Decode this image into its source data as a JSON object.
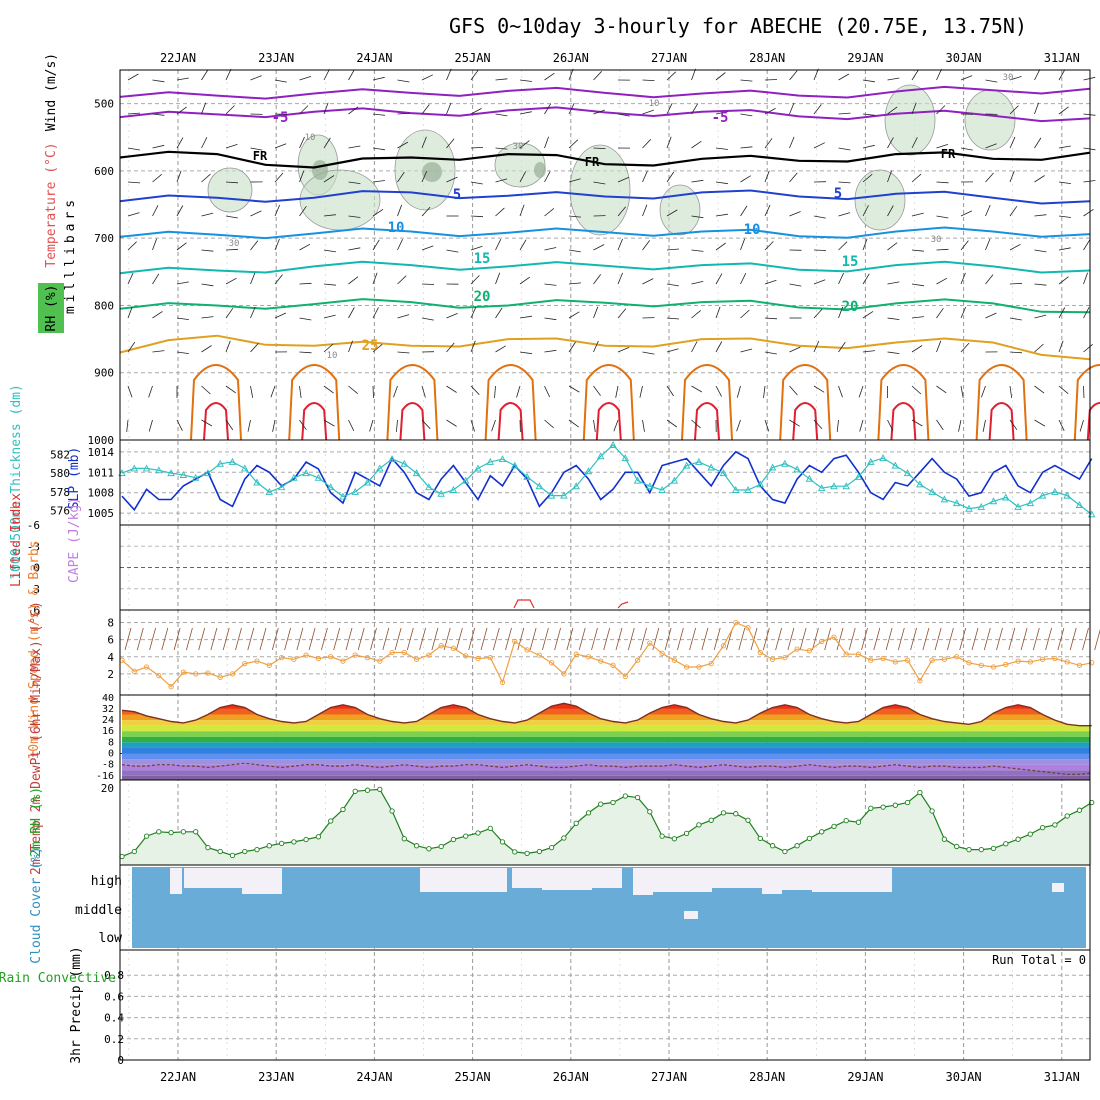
{
  "title": "GFS 0~10day 3-hourly for ABECHE (20.75E, 13.75N)",
  "days": [
    "22JAN",
    "23JAN",
    "24JAN",
    "25JAN",
    "26JAN",
    "27JAN",
    "28JAN",
    "29JAN",
    "30JAN",
    "31JAN"
  ],
  "colors": {
    "temp_isotherm_cold": "#9020c0",
    "freezing_line": "#000000",
    "isotherm_5": "#2040d0",
    "isotherm_10": "#1890e0",
    "isotherm_15": "#10b8b0",
    "isotherm_20": "#10b070",
    "isotherm_25": "#e0a020",
    "isotherm_30": "#e07010",
    "isotherm_35": "#e02030",
    "rh_fill": "#c8e0c8",
    "slp_line": "#1030d0",
    "thickness_line": "#30c0c0",
    "wind_speed_line": "#f0a040",
    "rh2m_line": "#208020",
    "cloud_fill": "#6aacd8",
    "cloud_gap": "#f4f0f8"
  },
  "chart_data": [
    {
      "panel": "upper-air",
      "type": "contour",
      "ylabel": "milllibars",
      "legend_labels": [
        "Wind (m/s)",
        "Temperature (°C)",
        "RH (%)"
      ],
      "yticks": [
        500,
        600,
        700,
        800,
        900,
        1000
      ],
      "ylim": [
        1000,
        450
      ],
      "isotherm_labels": [
        "-5",
        "-5",
        "FR",
        "FR",
        "FR",
        "5",
        "5",
        "10",
        "10",
        "15",
        "15",
        "20",
        "20",
        "25"
      ],
      "rh_labels": [
        "30",
        "10",
        "10",
        "30",
        "30",
        "30",
        "10"
      ],
      "isotherms": [
        {
          "label": "-5",
          "color_key": "temp_isotherm_cold",
          "p": [
            490,
            488,
            485,
            484,
            481,
            484,
            485,
            488,
            482,
            480,
            478
          ]
        },
        {
          "label": "-5",
          "color_key": "temp_isotherm_cold",
          "p": [
            520,
            516,
            512,
            514,
            510,
            513,
            512,
            519,
            515,
            518,
            522
          ]
        },
        {
          "label": "FR",
          "color_key": "freezing_line",
          "p": [
            580,
            575,
            595,
            580,
            575,
            590,
            582,
            585,
            575,
            582,
            573
          ]
        },
        {
          "label": "5",
          "color_key": "isotherm_5",
          "p": [
            645,
            640,
            640,
            632,
            637,
            638,
            632,
            638,
            634,
            640,
            645
          ]
        },
        {
          "label": "10",
          "color_key": "isotherm_10",
          "p": [
            698,
            695,
            693,
            690,
            692,
            691,
            690,
            697,
            690,
            690,
            694
          ]
        },
        {
          "label": "15",
          "color_key": "isotherm_15",
          "p": [
            752,
            748,
            742,
            740,
            742,
            741,
            740,
            747,
            740,
            742,
            748
          ]
        },
        {
          "label": "20",
          "color_key": "isotherm_20",
          "p": [
            805,
            800,
            798,
            795,
            800,
            796,
            795,
            803,
            797,
            797,
            810
          ]
        },
        {
          "label": "25",
          "color_key": "isotherm_25",
          "p": [
            870,
            845,
            860,
            860,
            850,
            860,
            850,
            860,
            855,
            855,
            880
          ]
        }
      ]
    },
    {
      "panel": "slp-thickness",
      "type": "line",
      "ylabel_left": "1000-500mb Thickness (dm)",
      "ylabel_right": "SLP (mb)",
      "yticks_left": [
        576,
        578,
        580,
        582
      ],
      "yticks_right": [
        1005,
        1008,
        1011,
        1014
      ],
      "ylim_slp": [
        1004,
        1015
      ],
      "ylim_thk": [
        575,
        583
      ],
      "series": [
        {
          "name": "SLP (mb)",
          "values": [
            1007.5,
            1005.5,
            1008.5,
            1007,
            1007,
            1009,
            1010,
            1011,
            1007,
            1006,
            1010,
            1012,
            1011,
            1009,
            1010,
            1012.5,
            1011.5,
            1008,
            1006.5,
            1011,
            1010,
            1009,
            1013,
            1011,
            1008,
            1007,
            1010,
            1012,
            1009.5,
            1007,
            1010.5,
            1009,
            1012,
            1010,
            1006,
            1008,
            1011,
            1012,
            1010,
            1007,
            1008.5,
            1011,
            1011,
            1008,
            1012,
            1012.5,
            1013,
            1011,
            1009,
            1012,
            1014,
            1013,
            1009,
            1007,
            1006.5,
            1010,
            1012,
            1011,
            1013,
            1013.5,
            1011,
            1008,
            1007,
            1009.5,
            1009,
            1011,
            1013,
            1011,
            1010,
            1007.5,
            1008,
            1011,
            1012,
            1009,
            1008,
            1011,
            1012,
            1011,
            1010,
            1013
          ]
        },
        {
          "name": "1000-500mb Thickness (dm)",
          "values": [
            580,
            580.5,
            580.5,
            580.3,
            580,
            579.8,
            579.5,
            580,
            581,
            581.2,
            580.5,
            579,
            578,
            578.5,
            579.5,
            580,
            579.5,
            578.5,
            577.5,
            578,
            579,
            580.5,
            581.5,
            581,
            580,
            578.5,
            577.8,
            578.2,
            579.2,
            580.5,
            581.2,
            581.5,
            580.8,
            579.6,
            578.6,
            577.6,
            577.6,
            578.6,
            580.2,
            581.8,
            583,
            581.6,
            579.2,
            578.6,
            578.2,
            579.2,
            580.8,
            581.2,
            580.6,
            580,
            578.2,
            578.2,
            578.8,
            580.6,
            581,
            580.4,
            579.4,
            578.4,
            578.6,
            578.6,
            579.6,
            581.2,
            581.6,
            580.8,
            580,
            578.8,
            578,
            577.2,
            576.8,
            576.2,
            576.4,
            577,
            577.4,
            576.4,
            576.8,
            577.6,
            578,
            577.6,
            576.6,
            575.6
          ]
        }
      ]
    },
    {
      "panel": "lifted-index-cape",
      "type": "line",
      "ylabel_left": "Lifted Index",
      "ylabel_right": "CAPE (J/kg)",
      "yticks": [
        "-6",
        "-3",
        "0",
        "3",
        "6"
      ],
      "ylim": [
        -6,
        6
      ]
    },
    {
      "panel": "wind10m",
      "type": "line",
      "ylabel": "10m Wind Speed (m/s) & Barbs",
      "yticks": [
        2,
        4,
        6,
        8
      ],
      "ylim": [
        0,
        9
      ],
      "series": [
        {
          "name": "10m Wind Speed",
          "values": [
            3.6,
            2.3,
            2.8,
            1.8,
            0.5,
            2.2,
            2.0,
            2.1,
            1.6,
            2.0,
            3.2,
            3.5,
            3.0,
            3.9,
            3.7,
            4.2,
            3.8,
            4.0,
            3.5,
            4.2,
            3.9,
            3.5,
            4.5,
            4.5,
            3.7,
            4.2,
            5.3,
            5.0,
            4.1,
            3.8,
            3.9,
            1.0,
            5.8,
            4.8,
            4.2,
            3.3,
            2.0,
            4.3,
            4.0,
            3.5,
            3.0,
            1.7,
            3.6,
            5.6,
            4.4,
            3.6,
            2.8,
            2.8,
            3.2,
            5.3,
            8.0,
            7.4,
            4.5,
            3.7,
            3.9,
            4.9,
            4.7,
            5.8,
            6.3,
            4.3,
            4.3,
            3.6,
            3.8,
            3.4,
            3.6,
            1.2,
            3.6,
            3.7,
            4.0,
            3.3,
            3.0,
            2.8,
            3.1,
            3.5,
            3.4,
            3.7,
            3.8,
            3.4,
            3.0,
            3.3
          ]
        }
      ]
    },
    {
      "panel": "temp2m",
      "type": "area",
      "ylabel": "2m Temp 2m DewPt (6hr Min/Max) (°C)",
      "yticks": [
        -16,
        -8,
        0,
        8,
        16,
        24,
        32,
        40
      ],
      "ylim": [
        -19,
        42
      ],
      "series": [
        {
          "name": "2m Temp",
          "values": [
            31,
            30,
            27,
            25,
            23,
            22,
            24,
            28,
            33,
            35,
            33,
            28,
            25,
            23,
            22,
            23,
            28,
            33,
            35,
            33,
            28,
            25,
            23,
            22,
            23,
            28,
            33,
            35,
            33,
            28,
            25,
            23,
            22,
            24,
            29,
            34,
            36,
            34,
            29,
            25,
            23,
            22,
            24,
            29,
            33,
            35,
            33,
            28,
            25,
            23,
            22,
            24,
            29,
            33,
            35,
            33,
            28,
            25,
            23,
            22,
            23,
            28,
            33,
            35,
            33,
            28,
            25,
            23,
            22,
            21,
            23,
            29,
            33,
            35,
            33,
            28,
            24,
            21,
            20,
            20
          ]
        },
        {
          "name": "2m DewPt",
          "values": [
            -8,
            -9,
            -9,
            -8,
            -8,
            -9,
            -9,
            -10,
            -9,
            -8,
            -7,
            -8,
            -9,
            -10,
            -9,
            -8,
            -8,
            -9,
            -9,
            -8,
            -9,
            -10,
            -9,
            -8,
            -9,
            -10,
            -9,
            -9,
            -8,
            -8,
            -9,
            -10,
            -9,
            -8,
            -9,
            -10,
            -10,
            -9,
            -8,
            -9,
            -9,
            -10,
            -9,
            -9,
            -9,
            -8,
            -9,
            -10,
            -9,
            -8,
            -9,
            -10,
            -9,
            -9,
            -10,
            -9,
            -8,
            -9,
            -10,
            -9,
            -9,
            -10,
            -9,
            -8,
            -9,
            -10,
            -9,
            -9,
            -10,
            -10,
            -10,
            -9,
            -10,
            -11,
            -12,
            -13,
            -14,
            -15,
            -15,
            -14
          ]
        }
      ]
    },
    {
      "panel": "rh2m",
      "type": "line",
      "ylabel": "2m RH (%)",
      "yticks": [
        20
      ],
      "ylim": [
        0,
        21
      ],
      "series": [
        {
          "name": "2m RH",
          "values": [
            2.2,
            3.5,
            7.5,
            8.6,
            8.4,
            8.6,
            8.6,
            4.5,
            3.5,
            2.5,
            3.5,
            4,
            5,
            5.6,
            6,
            6.6,
            7.3,
            11.4,
            14.4,
            19.1,
            19.4,
            19.6,
            14,
            6.8,
            5,
            4.2,
            4.8,
            6.6,
            7.5,
            8.3,
            9.5,
            6,
            3.4,
            3,
            3.5,
            4.5,
            7,
            10.8,
            13.5,
            15.8,
            16.2,
            17.9,
            17.5,
            13.8,
            7.5,
            6.8,
            8.2,
            10.4,
            11.6,
            13.5,
            13.3,
            11.6,
            6.9,
            5,
            3.5,
            5,
            6.9,
            8.6,
            10,
            11.5,
            11.1,
            14.7,
            15,
            15.5,
            16.2,
            18.8,
            14,
            6.7,
            4.8,
            4,
            4,
            4.3,
            5.5,
            6.7,
            8,
            9.7,
            10.4,
            12.7,
            14.2,
            16.2
          ]
        }
      ]
    },
    {
      "panel": "cloud-cover",
      "type": "area",
      "ylabel": "Cloud Cover (%)",
      "yticks": [
        "high",
        "middle",
        "low"
      ]
    },
    {
      "panel": "precip",
      "type": "bar",
      "ylabel_left": "Total / Rain Convective",
      "ylabel_right": "3hr Precip (mm)",
      "yticks": [
        "0",
        "0.2",
        "0.4",
        "0.6",
        "0.8"
      ],
      "ylim": [
        0,
        1
      ],
      "annotation": "Run Total = 0"
    }
  ]
}
